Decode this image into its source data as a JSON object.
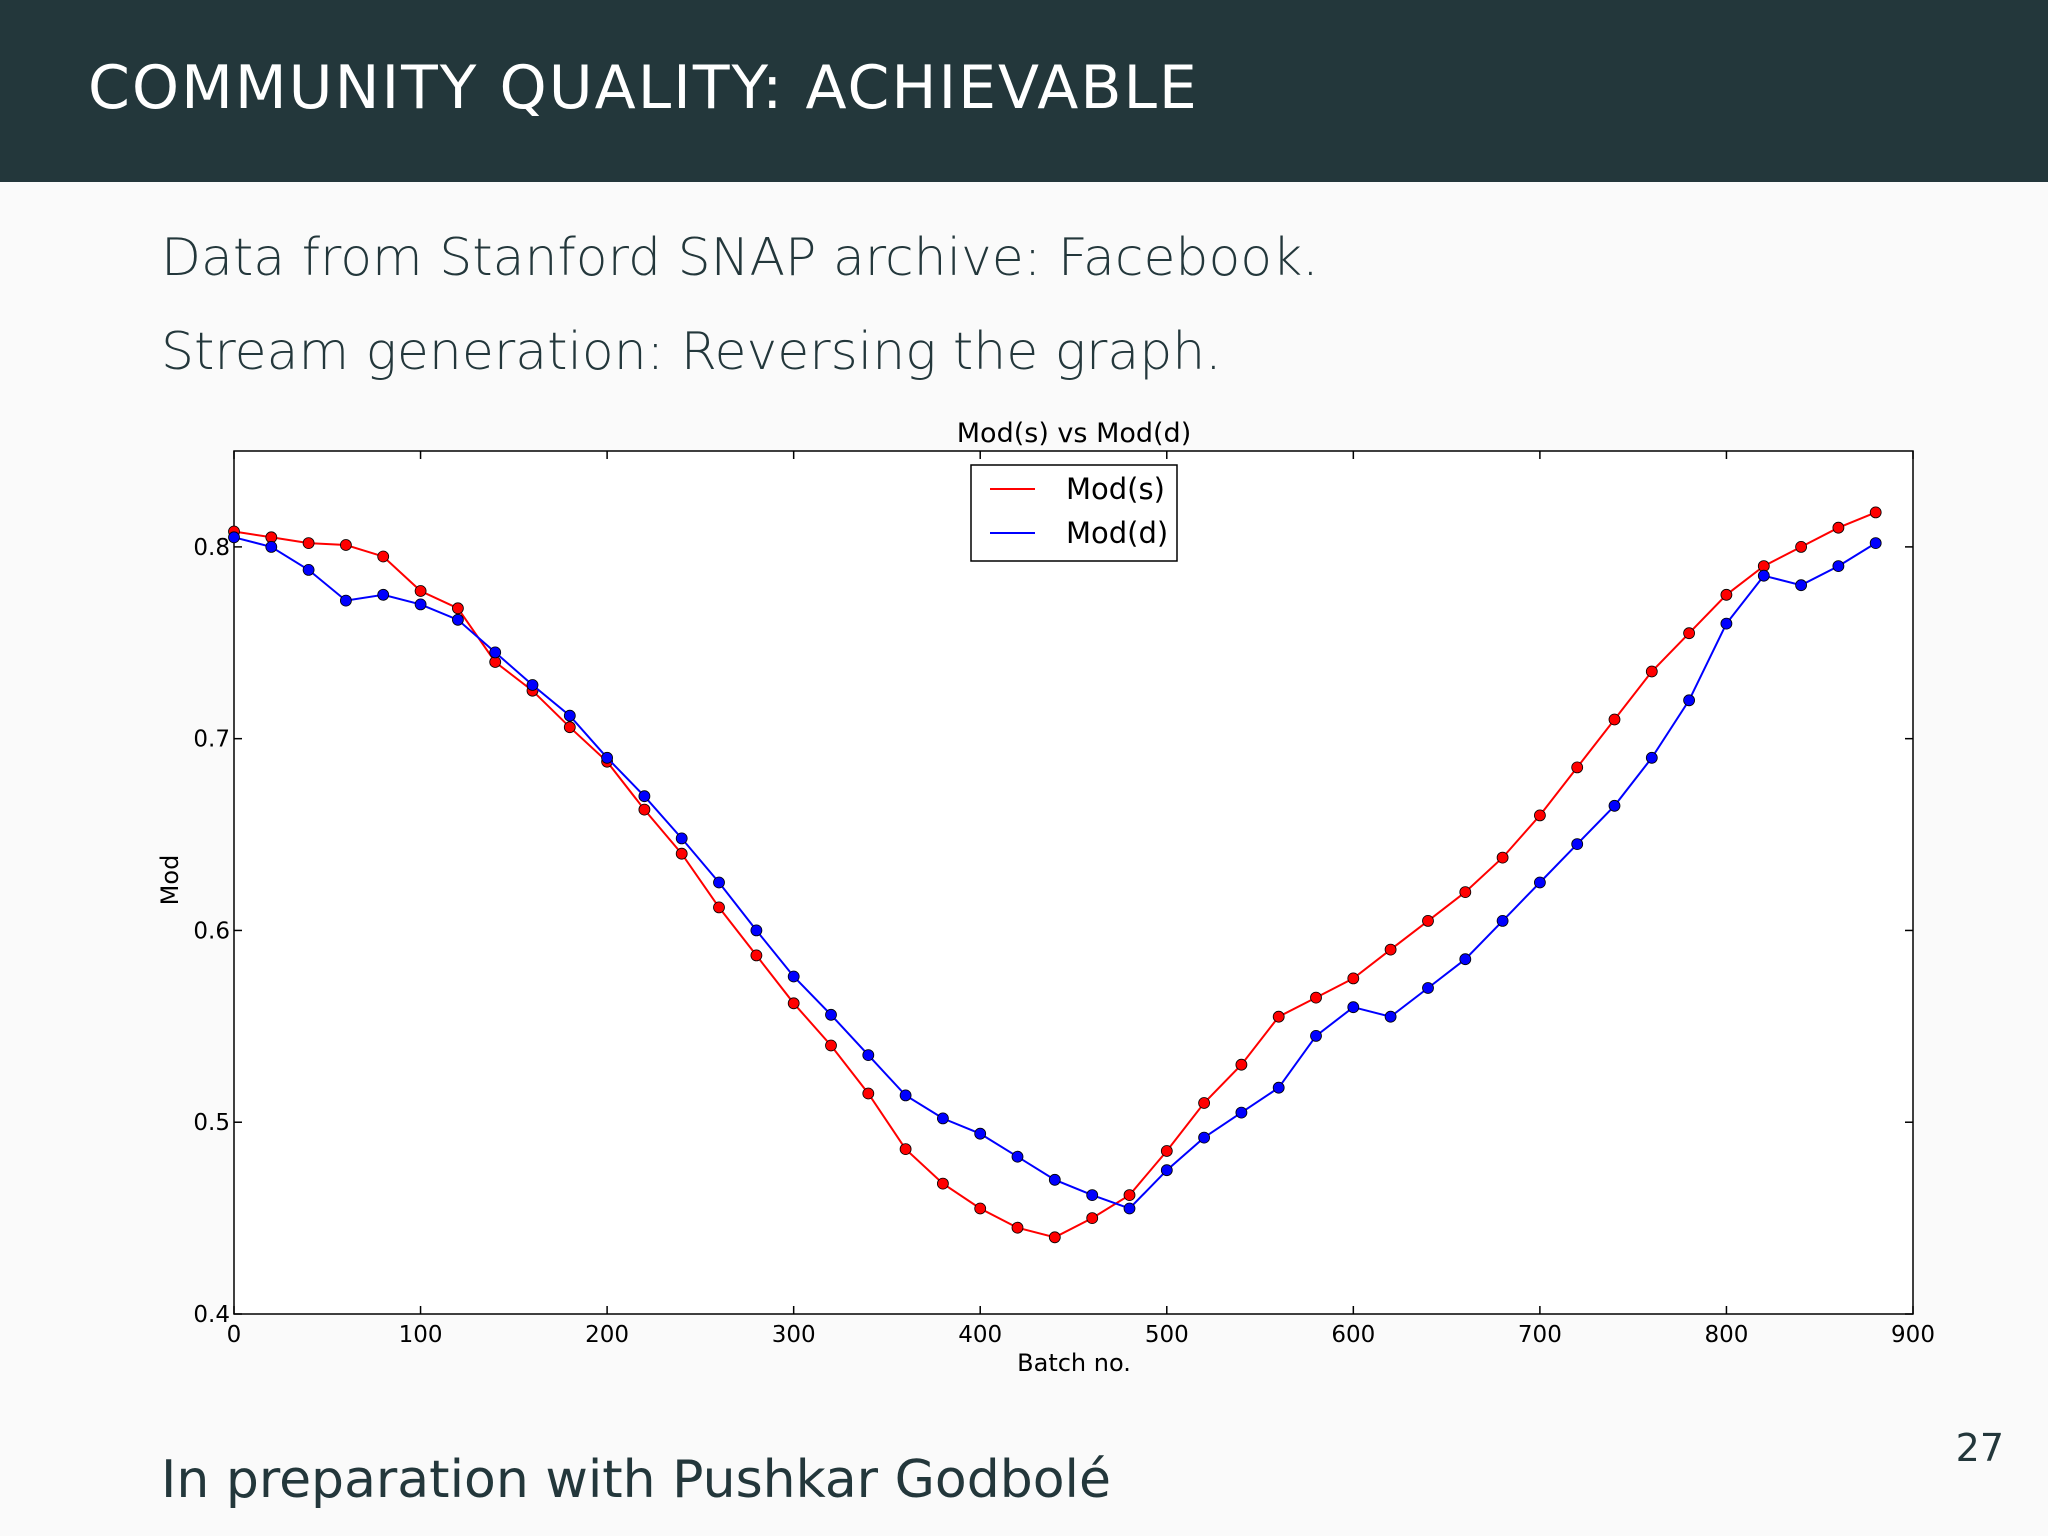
{
  "slide": {
    "title": "COMMUNITY QUALITY: ACHIEVABLE",
    "bullets": [
      "Data from Stanford SNAP archive: Facebook.",
      "Stream generation: Reversing the graph."
    ],
    "footer": "In preparation with Pushkar Godbolé",
    "page_number": "27"
  },
  "colors": {
    "header_bg": "#23373b",
    "text": "#23373b",
    "series_s": "#ff0000",
    "series_d": "#0000ff"
  },
  "chart_data": {
    "type": "line",
    "title": "Mod(s) vs Mod(d)",
    "xlabel": "Batch no.",
    "ylabel": "Mod",
    "xlim": [
      0,
      900
    ],
    "ylim": [
      0.4,
      0.85
    ],
    "xticks": [
      0,
      100,
      200,
      300,
      400,
      500,
      600,
      700,
      800,
      900
    ],
    "yticks": [
      0.4,
      0.5,
      0.6,
      0.7,
      0.8
    ],
    "ytick_labels": [
      "0.4",
      "0.5",
      "0.6",
      "0.7",
      "0.8"
    ],
    "grid": false,
    "legend_position": "top-center",
    "markers": true,
    "series": [
      {
        "name": "Mod(s)",
        "color": "#ff0000",
        "x": [
          0,
          20,
          40,
          60,
          80,
          100,
          120,
          140,
          160,
          180,
          200,
          220,
          240,
          260,
          280,
          300,
          320,
          340,
          360,
          380,
          400,
          420,
          440,
          460,
          480,
          500,
          520,
          540,
          560,
          580,
          600,
          620,
          640,
          660,
          680,
          700,
          720,
          740,
          760,
          780,
          800,
          820,
          840,
          860,
          880
        ],
        "y": [
          0.808,
          0.805,
          0.802,
          0.801,
          0.795,
          0.777,
          0.768,
          0.74,
          0.725,
          0.706,
          0.688,
          0.663,
          0.64,
          0.612,
          0.587,
          0.562,
          0.54,
          0.515,
          0.486,
          0.468,
          0.455,
          0.445,
          0.44,
          0.45,
          0.462,
          0.485,
          0.51,
          0.53,
          0.555,
          0.565,
          0.575,
          0.59,
          0.605,
          0.62,
          0.638,
          0.66,
          0.685,
          0.71,
          0.735,
          0.755,
          0.775,
          0.79,
          0.8,
          0.81,
          0.818
        ]
      },
      {
        "name": "Mod(d)",
        "color": "#0000ff",
        "x": [
          0,
          20,
          40,
          60,
          80,
          100,
          120,
          140,
          160,
          180,
          200,
          220,
          240,
          260,
          280,
          300,
          320,
          340,
          360,
          380,
          400,
          420,
          440,
          460,
          480,
          500,
          520,
          540,
          560,
          580,
          600,
          620,
          640,
          660,
          680,
          700,
          720,
          740,
          760,
          780,
          800,
          820,
          840,
          860,
          880
        ],
        "y": [
          0.805,
          0.8,
          0.788,
          0.772,
          0.775,
          0.77,
          0.762,
          0.745,
          0.728,
          0.712,
          0.69,
          0.67,
          0.648,
          0.625,
          0.6,
          0.576,
          0.556,
          0.535,
          0.514,
          0.502,
          0.494,
          0.482,
          0.47,
          0.462,
          0.455,
          0.475,
          0.492,
          0.505,
          0.518,
          0.545,
          0.56,
          0.555,
          0.57,
          0.585,
          0.605,
          0.625,
          0.645,
          0.665,
          0.69,
          0.72,
          0.76,
          0.785,
          0.78,
          0.79,
          0.802
        ]
      }
    ]
  }
}
